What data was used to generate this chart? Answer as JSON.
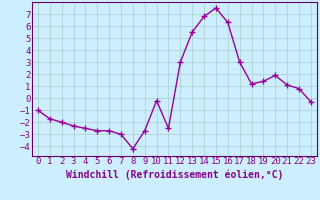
{
  "x": [
    0,
    1,
    2,
    3,
    4,
    5,
    6,
    7,
    8,
    9,
    10,
    11,
    12,
    13,
    14,
    15,
    16,
    17,
    18,
    19,
    20,
    21,
    22,
    23
  ],
  "y": [
    -1,
    -1.7,
    -2.0,
    -2.3,
    -2.5,
    -2.7,
    -2.7,
    -3.0,
    -4.2,
    -2.7,
    -0.2,
    -2.5,
    3.0,
    5.5,
    6.8,
    7.5,
    6.3,
    3.0,
    1.2,
    1.4,
    1.9,
    1.1,
    0.8,
    -0.3
  ],
  "line_color": "#990099",
  "marker": "+",
  "marker_size": 4,
  "marker_linewidth": 1.0,
  "line_width": 1.0,
  "bg_color": "#cceeff",
  "grid_color": "#aacccc",
  "axis_color": "#880088",
  "spine_color": "#660066",
  "xlabel": "Windchill (Refroidissement éolien,°C)",
  "xlabel_fontsize": 7,
  "tick_fontsize": 6.5,
  "ylim": [
    -4.8,
    8.0
  ],
  "xlim": [
    -0.5,
    23.5
  ],
  "yticks": [
    -4,
    -3,
    -2,
    -1,
    0,
    1,
    2,
    3,
    4,
    5,
    6,
    7
  ],
  "xticks": [
    0,
    1,
    2,
    3,
    4,
    5,
    6,
    7,
    8,
    9,
    10,
    11,
    12,
    13,
    14,
    15,
    16,
    17,
    18,
    19,
    20,
    21,
    22,
    23
  ]
}
